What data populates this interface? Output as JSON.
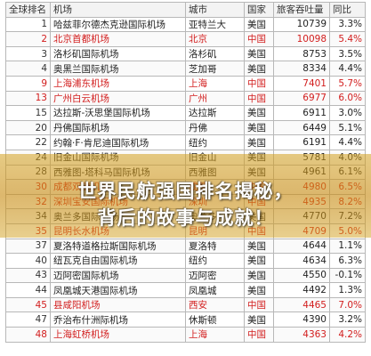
{
  "table": {
    "headers": [
      "全球排名",
      "机场",
      "城市",
      "国家",
      "旅客吞吐量",
      "同比"
    ],
    "rows": [
      {
        "rank": "1",
        "name": "哈兹菲尔德杰克逊国际机场",
        "city": "亚特兰大",
        "country": "美国",
        "volume": "10739",
        "change": "3.3%",
        "red": false
      },
      {
        "rank": "2",
        "name": "北京首都机场",
        "city": "北京",
        "country": "中国",
        "volume": "10098",
        "change": "5.4%",
        "red": true
      },
      {
        "rank": "3",
        "name": "洛杉矶国际机场",
        "city": "洛杉矶",
        "country": "美国",
        "volume": "8753",
        "change": "3.5%",
        "red": false
      },
      {
        "rank": "4",
        "name": "奥黑兰国际机场",
        "city": "芝加哥",
        "country": "美国",
        "volume": "8334",
        "change": "4.4%",
        "red": false
      },
      {
        "rank": "9",
        "name": "上海浦东机场",
        "city": "上海",
        "country": "中国",
        "volume": "7401",
        "change": "5.7%",
        "red": true
      },
      {
        "rank": "13",
        "name": "广州白云机场",
        "city": "广州",
        "country": "中国",
        "volume": "6977",
        "change": "6.0%",
        "red": true
      },
      {
        "rank": "15",
        "name": "达拉斯-沃思堡国际机场",
        "city": "达拉斯",
        "country": "美国",
        "volume": "6911",
        "change": "3.0%",
        "red": false
      },
      {
        "rank": "20",
        "name": "丹佛国际机场",
        "city": "丹佛",
        "country": "美国",
        "volume": "6449",
        "change": "5.1%",
        "red": false
      },
      {
        "rank": "22",
        "name": "约翰·F·肯尼迪国际机场",
        "city": "纽约",
        "country": "美国",
        "volume": "6191",
        "change": "4.4%",
        "red": false
      },
      {
        "rank": "24",
        "name": "旧金山国际机场",
        "city": "旧金山",
        "country": "美国",
        "volume": "5781",
        "change": "4.0%",
        "red": false
      },
      {
        "rank": "28",
        "name": "西雅图-塔科马国际机场",
        "city": "西雅图",
        "country": "美国",
        "volume": "4961",
        "change": "6.1%",
        "red": false
      },
      {
        "rank": "30",
        "name": "成都双流机场",
        "city": "成都",
        "country": "中国",
        "volume": "4980",
        "change": "6.5%",
        "red": true
      },
      {
        "rank": "32",
        "name": "深圳宝安国际机场",
        "city": "深圳",
        "country": "中国",
        "volume": "4935",
        "change": "8.2%",
        "red": true
      },
      {
        "rank": "34",
        "name": "奥兰多国际机场",
        "city": "奥兰多",
        "country": "美国",
        "volume": "4770",
        "change": "7.2%",
        "red": false
      },
      {
        "rank": "35",
        "name": "昆明长水机场",
        "city": "昆明",
        "country": "中国",
        "volume": "4709",
        "change": "5.0%",
        "red": true
      },
      {
        "rank": "37",
        "name": "夏洛特道格拉斯国际机场",
        "city": "夏洛特",
        "country": "美国",
        "volume": "4644",
        "change": "1.1%",
        "red": false
      },
      {
        "rank": "40",
        "name": "纽瓦克自由国际机场",
        "city": "纽约",
        "country": "美国",
        "volume": "4634",
        "change": "6.3%",
        "red": false
      },
      {
        "rank": "43",
        "name": "迈阿密国际机场",
        "city": "迈阿密",
        "country": "美国",
        "volume": "4550",
        "change": "-0.1%",
        "red": false
      },
      {
        "rank": "44",
        "name": "凤凰城天港国际机场",
        "city": "凤凰城",
        "country": "美国",
        "volume": "4492",
        "change": "1.3%",
        "red": false
      },
      {
        "rank": "45",
        "name": "县咸阳机场",
        "city": "西安",
        "country": "中国",
        "volume": "4465",
        "change": "7.0%",
        "red": true
      },
      {
        "rank": "47",
        "name": "乔治布什洲际机场",
        "city": "休斯顿",
        "country": "美国",
        "volume": "4390",
        "change": "3.2%",
        "red": false
      },
      {
        "rank": "48",
        "name": "上海虹桥机场",
        "city": "上海",
        "country": "中国",
        "volume": "4363",
        "change": "4.2%",
        "red": true
      }
    ]
  },
  "headline": {
    "line1": "世界民航强国排名揭秘，",
    "line2": "背后的故事与成就！"
  },
  "colors": {
    "china_row": "#d21d1d",
    "banner": "#c98c14"
  }
}
